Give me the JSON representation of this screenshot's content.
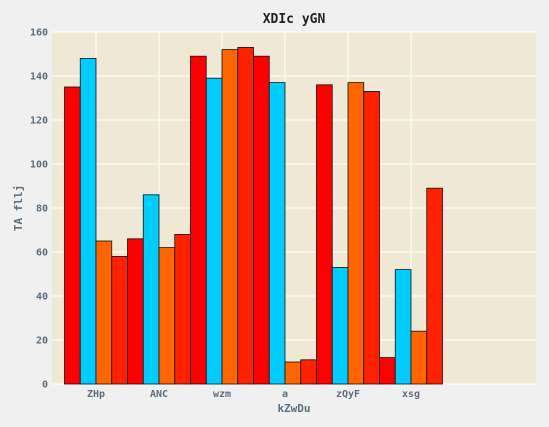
{
  "chart_data": {
    "type": "bar",
    "title": "XDIc yGN",
    "xlabel": "kZwDu",
    "ylabel": "TA fllj",
    "categories": [
      "ZHp",
      "ANC",
      "wzm",
      "a",
      "zQyF",
      "xsg"
    ],
    "ylim": [
      0,
      160
    ],
    "yticks": [
      0,
      20,
      40,
      60,
      80,
      100,
      120,
      140,
      160
    ],
    "grid": true,
    "legend": "none",
    "colors": [
      "#ff0000",
      "#00ccff",
      "#ff6600",
      "#ff2200"
    ],
    "series": [
      {
        "values": [
          135,
          66,
          149,
          149,
          136,
          12
        ]
      },
      {
        "values": [
          148,
          86,
          139,
          137,
          53,
          52
        ]
      },
      {
        "values": [
          65,
          62,
          152,
          10,
          137,
          24
        ]
      },
      {
        "values": [
          58,
          68,
          153,
          11,
          133,
          89
        ]
      }
    ],
    "background": "#efe8d5",
    "gridline_color": "#ffffff"
  }
}
